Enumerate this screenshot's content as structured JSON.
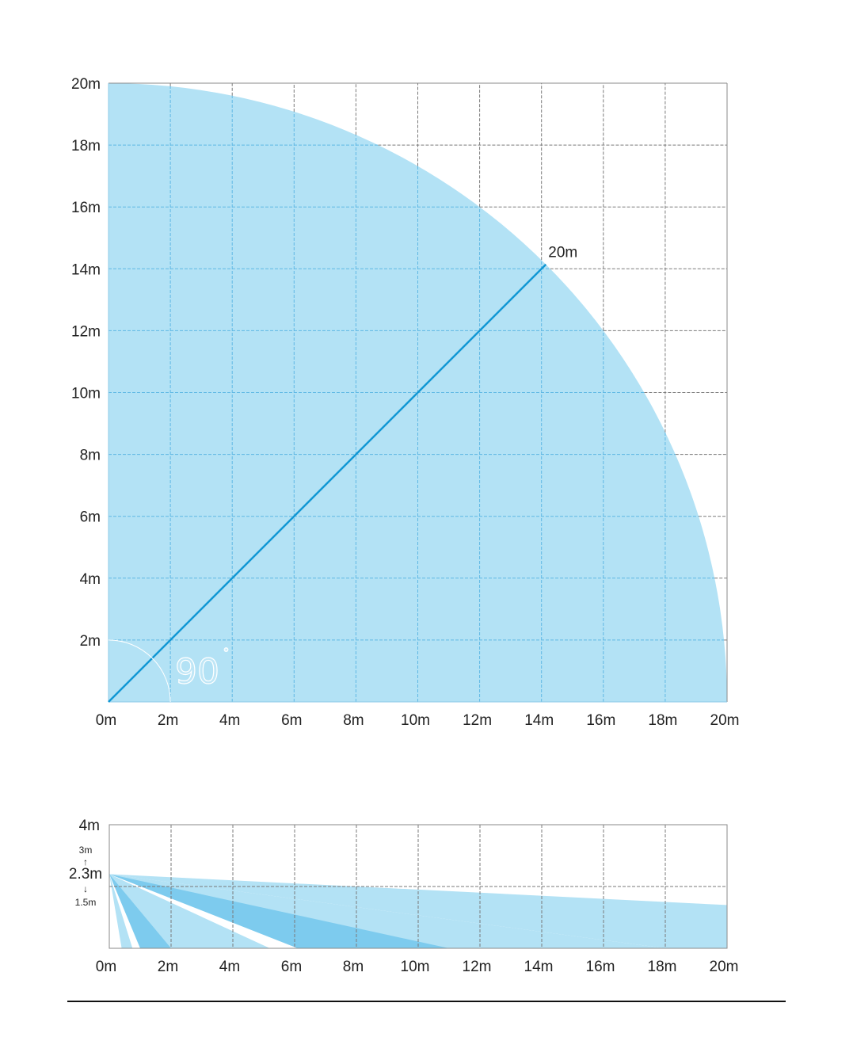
{
  "colors": {
    "coverage": "#b3e2f5",
    "coverage_dark": "#7dcbee",
    "radius_line": "#1197d4",
    "grid": "#7a7a7a",
    "divider": "#111111"
  },
  "chart_data": [
    {
      "type": "area",
      "shape": "quarter-circle detection coverage",
      "title": "",
      "radius_m": 20,
      "angle_deg": 90,
      "angle_label": "90",
      "angle_unit": "°",
      "radius_label": "20m",
      "xlim": [
        0,
        20
      ],
      "ylim": [
        0,
        20
      ],
      "x_ticks": [
        "0m",
        "2m",
        "4m",
        "6m",
        "8m",
        "10m",
        "12m",
        "14m",
        "16m",
        "18m",
        "20m"
      ],
      "y_ticks": [
        "2m",
        "4m",
        "6m",
        "8m",
        "10m",
        "12m",
        "14m",
        "16m",
        "18m",
        "20m"
      ],
      "grid": true
    },
    {
      "type": "area",
      "shape": "side-view detection beams",
      "title": "",
      "xlim": [
        0,
        20
      ],
      "ylim": [
        0,
        4
      ],
      "mount_height": "2.3m",
      "mount_range_top": "3m",
      "mount_range_bottom": "1.5m",
      "up_arrow": "↑",
      "down_arrow": "↓",
      "y_top_label": "4m",
      "x_ticks": [
        "0m",
        "2m",
        "4m",
        "6m",
        "8m",
        "10m",
        "12m",
        "14m",
        "16m",
        "18m",
        "20m"
      ],
      "beams": [
        {
          "x_near": 0.4,
          "x_far": 0.75,
          "tone": "light"
        },
        {
          "x_near": 1.0,
          "x_far": 2.4,
          "tone": "dark"
        },
        {
          "x_near": 2.0,
          "x_far": 4.0,
          "tone": "light"
        },
        {
          "x_near": 3.4,
          "x_far": 5.2,
          "tone": "light"
        },
        {
          "x_near": 6.1,
          "x_far": 13.1,
          "tone": "dark"
        },
        {
          "x_near": 11.0,
          "x_far": 18.0,
          "tone": "light"
        },
        {
          "x_far": 20.0,
          "y_far_top": 2.35,
          "y_far_bottom": 1.4,
          "tone": "light"
        }
      ],
      "grid": true
    }
  ]
}
